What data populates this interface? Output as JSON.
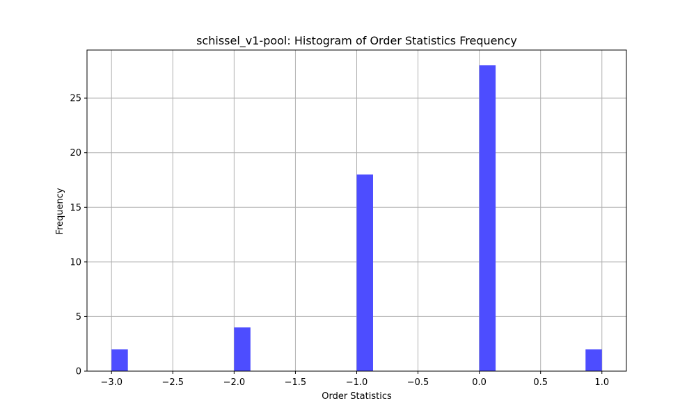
{
  "chart_data": {
    "type": "bar",
    "title": "schissel_v1-pool: Histogram of Order Statistics Frequency",
    "xlabel": "Order Statistics",
    "ylabel": "Frequency",
    "xlim": [
      -3.2,
      1.2
    ],
    "ylim": [
      0,
      29.4
    ],
    "x_ticks": [
      -3.0,
      -2.5,
      -2.0,
      -1.5,
      -1.0,
      -0.5,
      0.0,
      0.5,
      1.0
    ],
    "x_tick_labels": [
      "−3.0",
      "−2.5",
      "−2.0",
      "−1.5",
      "−1.0",
      "−0.5",
      "0.0",
      "0.5",
      "1.0"
    ],
    "y_ticks": [
      0,
      5,
      10,
      15,
      20,
      25
    ],
    "y_tick_labels": [
      "0",
      "5",
      "10",
      "15",
      "20",
      "25"
    ],
    "bin_width": 0.1333,
    "bins": [
      {
        "x0": -3.0,
        "value": 2
      },
      {
        "x0": -2.0,
        "value": 4
      },
      {
        "x0": -1.0,
        "value": 18
      },
      {
        "x0": 0.0,
        "value": 28
      },
      {
        "x0": 0.8667,
        "value": 2
      }
    ],
    "bar_color": "#4d4dff",
    "grid": true
  }
}
